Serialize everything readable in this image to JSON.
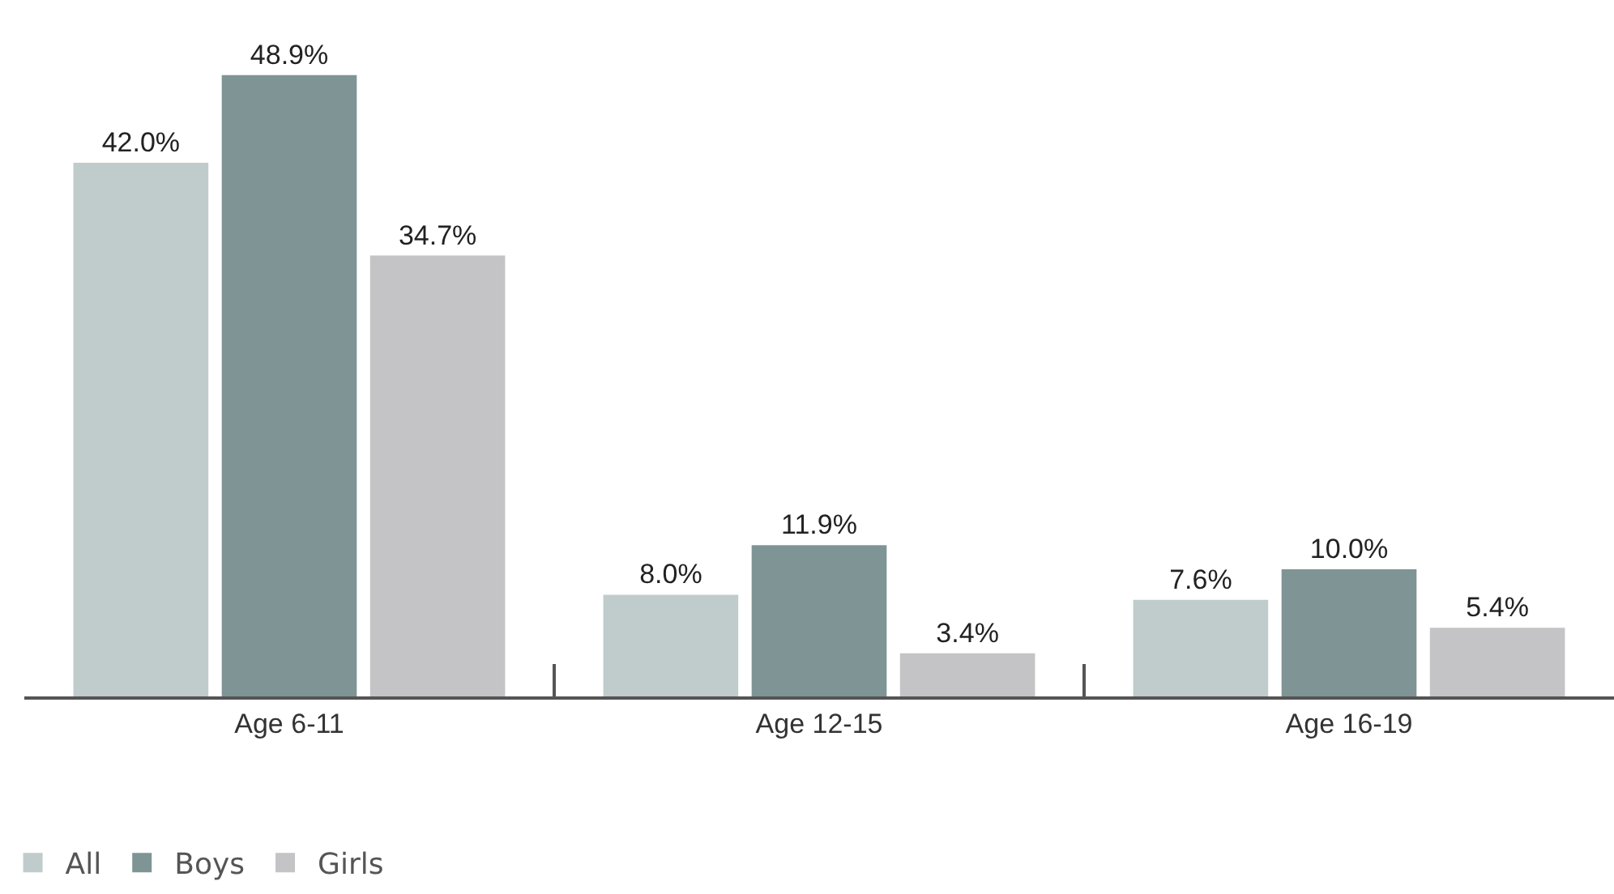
{
  "chart_data": {
    "type": "bar",
    "categories": [
      "Age 6-11",
      "Age 12-15",
      "Age 16-19"
    ],
    "series": [
      {
        "name": "All",
        "color": "#c0cccb",
        "values": [
          42.0,
          8.0,
          7.6
        ],
        "value_labels": [
          "42.0%",
          "8.0%",
          "7.6%"
        ]
      },
      {
        "name": "Boys",
        "color": "#7f9495",
        "values": [
          48.9,
          11.9,
          10.0
        ],
        "value_labels": [
          "48.9%",
          "11.9%",
          "10.0%"
        ]
      },
      {
        "name": "Girls",
        "color": "#c4c4c6",
        "values": [
          34.7,
          3.4,
          5.4
        ],
        "value_labels": [
          "34.7%",
          "3.4%",
          "5.4%"
        ]
      }
    ],
    "legend": "bottom left"
  }
}
